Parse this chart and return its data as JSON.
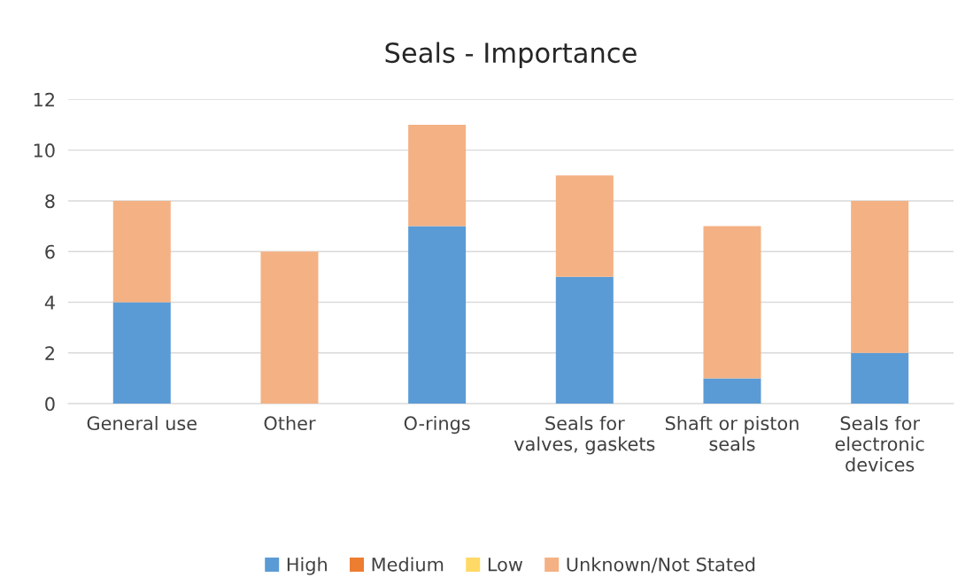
{
  "chart_data": {
    "type": "bar",
    "title": "Seals - Importance",
    "stacked": true,
    "categories": [
      "General use",
      "Other",
      "O-rings",
      "Seals for\nvalves, gaskets",
      "Shaft or piston\nseals",
      "Seals for\nelectronic\ndevices"
    ],
    "series": [
      {
        "name": "High",
        "color": "#5b9bd5",
        "values": [
          4,
          0,
          7,
          5,
          1,
          2
        ]
      },
      {
        "name": "Medium",
        "color": "#ed7d31",
        "values": [
          0,
          0,
          0,
          0,
          0,
          0
        ]
      },
      {
        "name": "Low",
        "color": "#ffd966",
        "values": [
          0,
          0,
          0,
          0,
          0,
          0
        ]
      },
      {
        "name": "Unknown/Not Stated",
        "color": "#f4b183",
        "values": [
          4,
          6,
          4,
          4,
          6,
          6
        ]
      }
    ],
    "ylim": [
      0,
      12
    ],
    "yticks": [
      0,
      2,
      4,
      6,
      8,
      10,
      12
    ],
    "grid": "y",
    "legend": "bottom"
  }
}
